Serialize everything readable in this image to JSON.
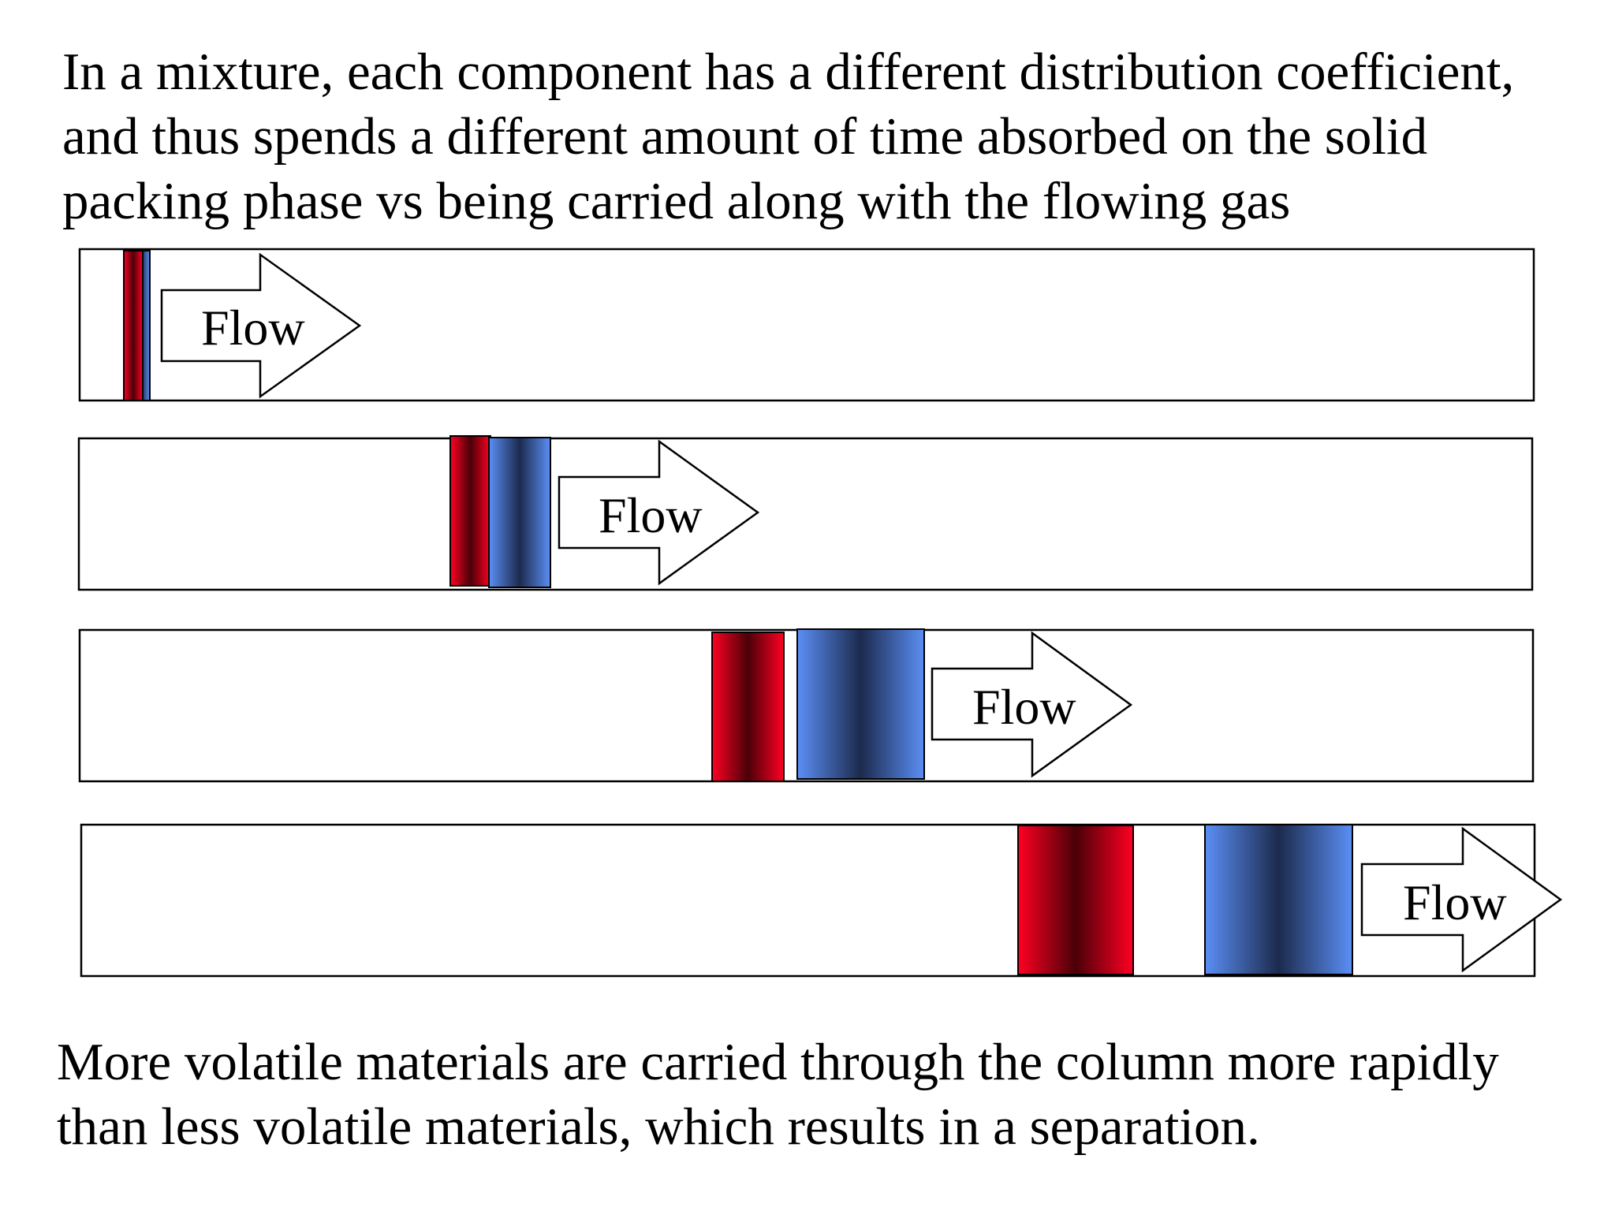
{
  "top_caption": {
    "lines": [
      "In a mixture, each component has a different distribution coefficient,",
      "and thus spends a different amount of time absorbed on the solid",
      "packing phase vs being carried along with the flowing gas"
    ]
  },
  "bottom_caption": {
    "lines": [
      "More volatile materials are carried through the column more rapidly",
      "than less volatile materials, which results in a separation."
    ]
  },
  "colors": {
    "red_band_edge": "#ff0022",
    "red_band_core": "#4a0008",
    "blue_band_edge": "#5b8ff5",
    "blue_band_core": "#1c2a4d",
    "outline": "#000000"
  },
  "columns": [
    {
      "name": "column-stage-1",
      "flow_label": "Flow"
    },
    {
      "name": "column-stage-2",
      "flow_label": "Flow"
    },
    {
      "name": "column-stage-3",
      "flow_label": "Flow"
    },
    {
      "name": "column-stage-4",
      "flow_label": "Flow"
    }
  ]
}
